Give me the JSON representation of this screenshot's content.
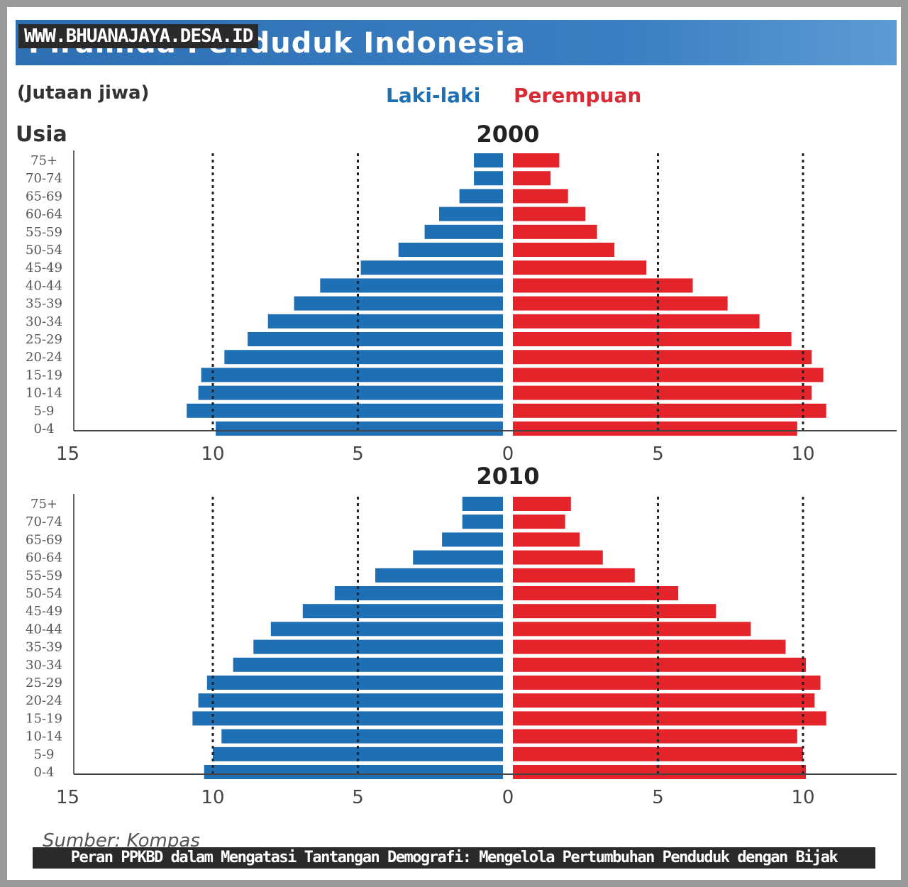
{
  "watermark": "WWW.BHUANAJAYA.DESA.ID",
  "header": {
    "title": "Piramida Penduduk Indonesia"
  },
  "unit_label": "(Jutaan jiwa)",
  "age_axis_title": "Usia",
  "legend": {
    "male": "Laki-laki",
    "female": "Perempuan"
  },
  "colors": {
    "male": "#1f6fb5",
    "female": "#e3242b",
    "title_band": "#2d6fb2"
  },
  "source": "Sumber: Kompas",
  "caption": "Peran PPKBD dalam Mengatasi Tantangan Demografi: Mengelola Pertumbuhan Penduduk dengan Bijak",
  "chart_data": [
    {
      "type": "bar",
      "orientation": "horizontal-population-pyramid",
      "title": "2000",
      "ylabel": "Usia",
      "xlabel": "(Jutaan jiwa)",
      "xlim": [
        -15,
        13
      ],
      "xticks": [
        {
          "label": "15",
          "value": -15
        },
        {
          "label": "10",
          "value": -10
        },
        {
          "label": "5",
          "value": -5
        },
        {
          "label": "0",
          "value": 0
        },
        {
          "label": "5",
          "value": 5
        },
        {
          "label": "10",
          "value": 10
        }
      ],
      "gridlines": [
        -10,
        -5,
        5,
        10
      ],
      "categories": [
        "75+",
        "70-74",
        "65-69",
        "60-64",
        "55-59",
        "50-54",
        "45-49",
        "40-44",
        "35-39",
        "30-34",
        "25-29",
        "20-24",
        "15-19",
        "10-14",
        "5-9",
        "0-4"
      ],
      "series": [
        {
          "name": "Laki-laki",
          "values": [
            1.0,
            1.0,
            1.5,
            2.2,
            2.7,
            3.6,
            4.9,
            6.3,
            7.2,
            8.1,
            8.8,
            9.6,
            10.4,
            10.5,
            10.9,
            9.9
          ]
        },
        {
          "name": "Perempuan",
          "values": [
            1.6,
            1.3,
            1.9,
            2.5,
            2.9,
            3.5,
            4.6,
            6.2,
            7.4,
            8.5,
            9.6,
            10.3,
            10.7,
            10.3,
            10.8,
            9.8
          ]
        }
      ]
    },
    {
      "type": "bar",
      "orientation": "horizontal-population-pyramid",
      "title": "2010",
      "ylabel": "Usia",
      "xlabel": "(Jutaan jiwa)",
      "xlim": [
        -15,
        13
      ],
      "xticks": [
        {
          "label": "15",
          "value": -15
        },
        {
          "label": "10",
          "value": -10
        },
        {
          "label": "5",
          "value": -5
        },
        {
          "label": "0",
          "value": 0
        },
        {
          "label": "5",
          "value": 5
        },
        {
          "label": "10",
          "value": 10
        }
      ],
      "gridlines": [
        -10,
        -5,
        5,
        10
      ],
      "categories": [
        "75+",
        "70-74",
        "65-69",
        "60-64",
        "55-59",
        "50-54",
        "45-49",
        "40-44",
        "35-39",
        "30-34",
        "25-29",
        "20-24",
        "15-19",
        "10-14",
        "5-9",
        "0-4"
      ],
      "series": [
        {
          "name": "Laki-laki",
          "values": [
            1.4,
            1.4,
            2.1,
            3.1,
            4.4,
            5.8,
            6.9,
            8.0,
            8.6,
            9.3,
            10.2,
            10.5,
            10.7,
            9.7,
            10.0,
            10.3
          ]
        },
        {
          "name": "Perempuan",
          "values": [
            2.0,
            1.8,
            2.3,
            3.1,
            4.2,
            5.7,
            7.0,
            8.2,
            9.4,
            10.1,
            10.6,
            10.4,
            10.8,
            9.8,
            10.0,
            10.1
          ]
        }
      ]
    }
  ]
}
